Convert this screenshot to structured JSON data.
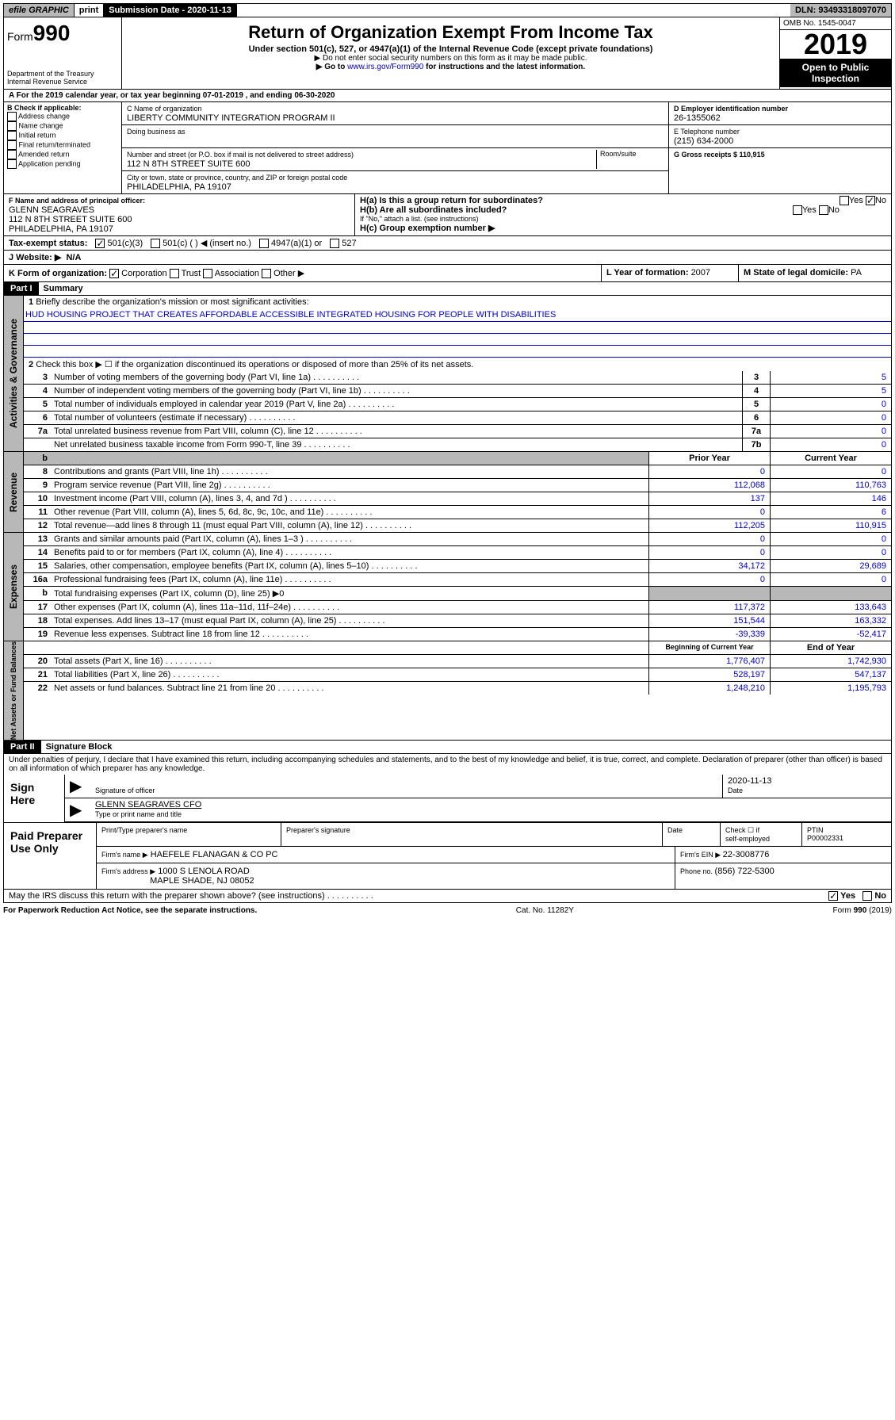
{
  "topbar": {
    "efile": "efile GRAPHIC",
    "print": "print",
    "subdate_label": "Submission Date - 2020-11-13",
    "dln": "DLN: 93493318097070"
  },
  "header": {
    "form_prefix": "Form",
    "form_num": "990",
    "dept": "Department of the Treasury",
    "irs": "Internal Revenue Service",
    "title": "Return of Organization Exempt From Income Tax",
    "subtitle": "Under section 501(c), 527, or 4947(a)(1) of the Internal Revenue Code (except private foundations)",
    "note1": "▶ Do not enter social security numbers on this form as it may be made public.",
    "note2_a": "▶ Go to ",
    "note2_link": "www.irs.gov/Form990",
    "note2_b": " for instructions and the latest information.",
    "omb": "OMB No. 1545-0047",
    "year": "2019",
    "opento": "Open to Public Inspection"
  },
  "calyr": "A For the 2019 calendar year, or tax year beginning 07-01-2019    , and ending 06-30-2020",
  "boxB": {
    "label": "B Check if applicable:",
    "items": [
      "Address change",
      "Name change",
      "Initial return",
      "Final return/terminated",
      "Amended return",
      "Application pending"
    ]
  },
  "boxC": {
    "name_lbl": "C Name of organization",
    "name": "LIBERTY COMMUNITY INTEGRATION PROGRAM II",
    "dba_lbl": "Doing business as",
    "addr_lbl": "Number and street (or P.O. box if mail is not delivered to street address)",
    "room_lbl": "Room/suite",
    "addr": "112 N 8TH STREET SUITE 600",
    "city_lbl": "City or town, state or province, country, and ZIP or foreign postal code",
    "city": "PHILADELPHIA, PA  19107"
  },
  "boxD": {
    "lbl": "D Employer identification number",
    "val": "26-1355062"
  },
  "boxE": {
    "lbl": "E Telephone number",
    "val": "(215) 634-2000"
  },
  "boxG": {
    "lbl": "G Gross receipts $ 110,915"
  },
  "boxF": {
    "lbl": "F  Name and address of principal officer:",
    "name": "GLENN SEAGRAVES",
    "addr1": "112 N 8TH STREET SUITE 600",
    "addr2": "PHILADELPHIA, PA  19107"
  },
  "boxH": {
    "a": "H(a)  Is this a group return for subordinates?",
    "b": "H(b)  Are all subordinates included?",
    "b_note": "If \"No,\" attach a list. (see instructions)",
    "c": "H(c)  Group exemption number ▶",
    "yes": "Yes",
    "no": "No"
  },
  "taxex": {
    "lbl": "Tax-exempt status:",
    "a": "501(c)(3)",
    "b": "501(c) (   ) ◀ (insert no.)",
    "c": "4947(a)(1) or",
    "d": "527"
  },
  "website": {
    "lbl": "J   Website: ▶",
    "val": "N/A"
  },
  "rowK": {
    "lbl": "K Form of organization:",
    "corp": "Corporation",
    "trust": "Trust",
    "assoc": "Association",
    "other": "Other ▶",
    "L_lbl": "L Year of formation: ",
    "L_val": "2007",
    "M_lbl": "M State of legal domicile: ",
    "M_val": "PA"
  },
  "part1": {
    "tag": "Part I",
    "title": "Summary"
  },
  "summary": {
    "q1_lbl": "Briefly describe the organization's mission or most significant activities:",
    "q1_val": "HUD HOUSING PROJECT THAT CREATES AFFORDABLE ACCESSIBLE INTEGRATED HOUSING FOR PEOPLE WITH DISABILITIES",
    "q2": "Check this box ▶ ☐  if the organization discontinued its operations or disposed of more than 25% of its net assets.",
    "rows_gov": [
      {
        "n": "3",
        "d": "Number of voting members of the governing body (Part VI, line 1a)",
        "b": "3",
        "v": "5"
      },
      {
        "n": "4",
        "d": "Number of independent voting members of the governing body (Part VI, line 1b)",
        "b": "4",
        "v": "5"
      },
      {
        "n": "5",
        "d": "Total number of individuals employed in calendar year 2019 (Part V, line 2a)",
        "b": "5",
        "v": "0"
      },
      {
        "n": "6",
        "d": "Total number of volunteers (estimate if necessary)",
        "b": "6",
        "v": "0"
      },
      {
        "n": "7a",
        "d": "Total unrelated business revenue from Part VIII, column (C), line 12",
        "b": "7a",
        "v": "0"
      },
      {
        "n": "",
        "d": "Net unrelated business taxable income from Form 990-T, line 39",
        "b": "7b",
        "v": "0"
      }
    ],
    "col_prior": "Prior Year",
    "col_curr": "Current Year",
    "rows_rev": [
      {
        "n": "8",
        "d": "Contributions and grants (Part VIII, line 1h)",
        "p": "0",
        "c": "0"
      },
      {
        "n": "9",
        "d": "Program service revenue (Part VIII, line 2g)",
        "p": "112,068",
        "c": "110,763"
      },
      {
        "n": "10",
        "d": "Investment income (Part VIII, column (A), lines 3, 4, and 7d )",
        "p": "137",
        "c": "146"
      },
      {
        "n": "11",
        "d": "Other revenue (Part VIII, column (A), lines 5, 6d, 8c, 9c, 10c, and 11e)",
        "p": "0",
        "c": "6"
      },
      {
        "n": "12",
        "d": "Total revenue—add lines 8 through 11 (must equal Part VIII, column (A), line 12)",
        "p": "112,205",
        "c": "110,915"
      }
    ],
    "rows_exp": [
      {
        "n": "13",
        "d": "Grants and similar amounts paid (Part IX, column (A), lines 1–3 )",
        "p": "0",
        "c": "0"
      },
      {
        "n": "14",
        "d": "Benefits paid to or for members (Part IX, column (A), line 4)",
        "p": "0",
        "c": "0"
      },
      {
        "n": "15",
        "d": "Salaries, other compensation, employee benefits (Part IX, column (A), lines 5–10)",
        "p": "34,172",
        "c": "29,689"
      },
      {
        "n": "16a",
        "d": "Professional fundraising fees (Part IX, column (A), line 11e)",
        "p": "0",
        "c": "0"
      },
      {
        "n": "b",
        "d": "Total fundraising expenses (Part IX, column (D), line 25) ▶0",
        "p": "",
        "c": ""
      },
      {
        "n": "17",
        "d": "Other expenses (Part IX, column (A), lines 11a–11d, 11f–24e)",
        "p": "117,372",
        "c": "133,643"
      },
      {
        "n": "18",
        "d": "Total expenses. Add lines 13–17 (must equal Part IX, column (A), line 25)",
        "p": "151,544",
        "c": "163,332"
      },
      {
        "n": "19",
        "d": "Revenue less expenses. Subtract line 18 from line 12",
        "p": "-39,339",
        "c": "-52,417"
      }
    ],
    "col_begin": "Beginning of Current Year",
    "col_end": "End of Year",
    "rows_net": [
      {
        "n": "20",
        "d": "Total assets (Part X, line 16)",
        "p": "1,776,407",
        "c": "1,742,930"
      },
      {
        "n": "21",
        "d": "Total liabilities (Part X, line 26)",
        "p": "528,197",
        "c": "547,137"
      },
      {
        "n": "22",
        "d": "Net assets or fund balances. Subtract line 21 from line 20",
        "p": "1,248,210",
        "c": "1,195,793"
      }
    ],
    "side_gov": "Activities & Governance",
    "side_rev": "Revenue",
    "side_exp": "Expenses",
    "side_net": "Net Assets or Fund Balances"
  },
  "part2": {
    "tag": "Part II",
    "title": "Signature Block"
  },
  "sig": {
    "decl": "Under penalties of perjury, I declare that I have examined this return, including accompanying schedules and statements, and to the best of my knowledge and belief, it is true, correct, and complete. Declaration of preparer (other than officer) is based on all information of which preparer has any knowledge.",
    "sign_here": "Sign Here",
    "sig_officer": "Signature of officer",
    "date_lbl": "Date",
    "date": "2020-11-13",
    "name": "GLENN SEAGRAVES CFO",
    "name_lbl": "Type or print name and title"
  },
  "paid": {
    "lbl": "Paid Preparer Use Only",
    "h1": "Print/Type preparer's name",
    "h2": "Preparer's signature",
    "h3": "Date",
    "h4a": "Check ☐ if",
    "h4b": "self-employed",
    "h5": "PTIN",
    "ptin": "P00002331",
    "firm_lbl": "Firm's name    ▶",
    "firm": "HAEFELE FLANAGAN & CO PC",
    "ein_lbl": "Firm's EIN ▶ ",
    "ein": "22-3008776",
    "addr_lbl": "Firm's address ▶",
    "addr1": "1000 S LENOLA ROAD",
    "addr2": "MAPLE SHADE, NJ  08052",
    "phone_lbl": "Phone no. ",
    "phone": "(856) 722-5300"
  },
  "discuss": {
    "q": "May the IRS discuss this return with the preparer shown above? (see instructions)",
    "yes": "Yes",
    "no": "No"
  },
  "footer": {
    "left": "For Paperwork Reduction Act Notice, see the separate instructions.",
    "mid": "Cat. No. 11282Y",
    "right": "Form 990 (2019)"
  }
}
